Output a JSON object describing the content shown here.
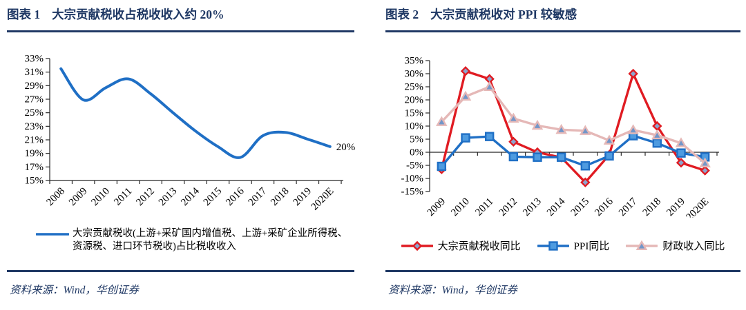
{
  "colors": {
    "navy": "#1F3864",
    "axis": "#262626",
    "tick_text": "#000000",
    "blue_line": "#1F6FC5",
    "red_line": "#E01B22",
    "pink_line": "#E5B8B7"
  },
  "figure1": {
    "label": "图表 1",
    "title": "大宗贡献税收占税收收入约 20%",
    "legend": "大宗贡献税收(上游+采矿国内增值税、上游+采矿企业所得税、资源税、进口环节税收)占比税收收入",
    "source": "资料来源：Wind，华创证券",
    "chart_data": {
      "type": "line",
      "smooth": true,
      "categories": [
        "2008",
        "2009",
        "2010",
        "2011",
        "2012",
        "2013",
        "2014",
        "2015",
        "2016",
        "2017",
        "2018",
        "2019",
        "2020E"
      ],
      "series": [
        {
          "name": "大宗贡献税收占比税收收入",
          "color": "#1F6FC5",
          "marker": "none",
          "values": [
            31.5,
            26.9,
            28.7,
            30.0,
            27.8,
            25.0,
            22.3,
            20.0,
            18.4,
            21.6,
            22.1,
            21.1,
            20.0
          ]
        }
      ],
      "end_label": "20%",
      "ylim": [
        15,
        33
      ],
      "ytick_step": 2,
      "yformat": "percent",
      "grid": false,
      "legend_position": "bottom"
    }
  },
  "figure2": {
    "label": "图表 2",
    "title": "大宗贡献税收对 PPI 较敏感",
    "source": "资料来源：Wind，华创证券",
    "chart_data": {
      "type": "line",
      "smooth": false,
      "categories": [
        "2009",
        "2010",
        "2011",
        "2012",
        "2013",
        "2014",
        "2015",
        "2016",
        "2017",
        "2018",
        "2019",
        "2020E"
      ],
      "series": [
        {
          "name": "大宗贡献税收同比",
          "color": "#E01B22",
          "marker": "diamond",
          "marker_fill": "#8CA5CE",
          "values": [
            -6.5,
            31,
            28,
            4,
            0,
            -2,
            -11.5,
            -1,
            30,
            10,
            -4,
            -7
          ]
        },
        {
          "name": "PPI同比",
          "color": "#1F6FC5",
          "marker": "square",
          "marker_fill": "#4E9BE0",
          "values": [
            -5.4,
            5.5,
            6.0,
            -1.7,
            -1.9,
            -1.9,
            -5.2,
            -1.4,
            6.3,
            3.5,
            -0.3,
            -1.8
          ]
        },
        {
          "name": "财政收入同比",
          "color": "#E5B8B7",
          "marker": "triangle",
          "marker_fill": "#7296C9",
          "values": [
            11.6,
            21.3,
            25.0,
            12.9,
            10.2,
            8.6,
            8.2,
            4.5,
            8.5,
            6.5,
            3.5,
            -4.2
          ]
        }
      ],
      "ylim": [
        -15,
        35
      ],
      "ytick_step": 5,
      "yformat": "percent",
      "grid": false,
      "x_axis_at_zero": true,
      "legend_position": "bottom"
    }
  }
}
